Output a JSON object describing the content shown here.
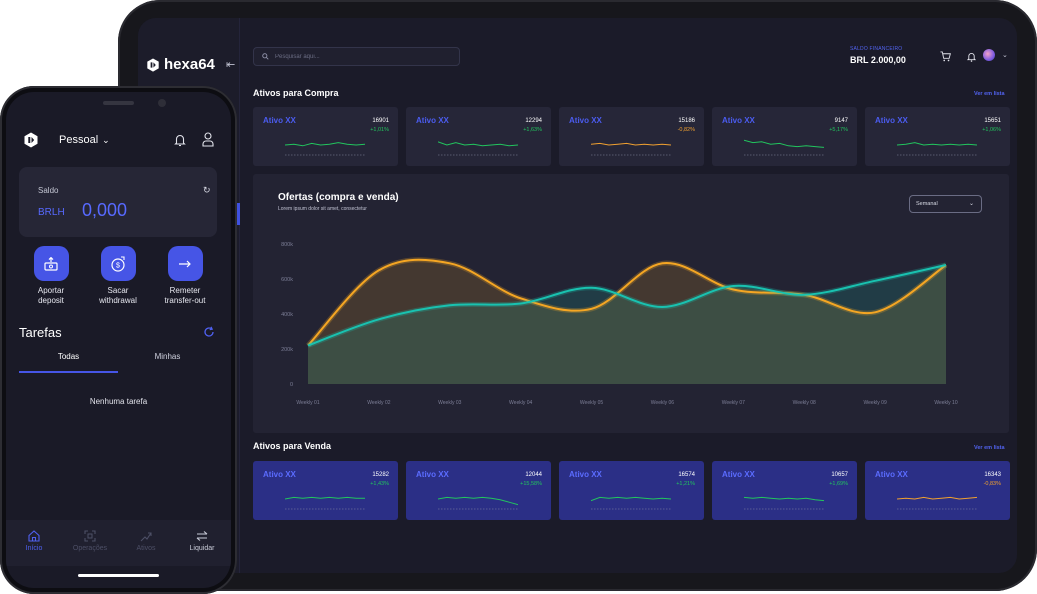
{
  "tablet": {
    "brand": "hexa64",
    "search_placeholder": "Pesquisar aqui...",
    "balance_label": "SALDO FINANCEIRO",
    "balance_value": "BRL 2.000,00",
    "buy": {
      "title": "Ativos para Compra",
      "link": "Ver em lista",
      "cards": [
        {
          "name": "Ativo XX",
          "price": "16901",
          "change": "+1,01%",
          "color": "#22c55e"
        },
        {
          "name": "Ativo XX",
          "price": "12294",
          "change": "+1,63%",
          "color": "#22c55e"
        },
        {
          "name": "Ativo XX",
          "price": "15186",
          "change": "-0,82%",
          "color": "#f0a030"
        },
        {
          "name": "Ativo XX",
          "price": "9147",
          "change": "+5,17%",
          "color": "#22c55e"
        },
        {
          "name": "Ativo XX",
          "price": "15651",
          "change": "+1,06%",
          "color": "#22c55e"
        }
      ]
    },
    "sell": {
      "title": "Ativos para Venda",
      "link": "Ver em lista",
      "cards": [
        {
          "name": "Ativo XX",
          "price": "15282",
          "change": "+1,43%",
          "color": "#22c55e"
        },
        {
          "name": "Ativo XX",
          "price": "12044",
          "change": "+15,58%",
          "color": "#22c55e"
        },
        {
          "name": "Ativo XX",
          "price": "16574",
          "change": "+1,21%",
          "color": "#22c55e"
        },
        {
          "name": "Ativo XX",
          "price": "10657",
          "change": "+1,69%",
          "color": "#22c55e"
        },
        {
          "name": "Ativo XX",
          "price": "16343",
          "change": "-0,83%",
          "color": "#f0a030"
        }
      ]
    },
    "offers": {
      "title": "Ofertas (compra e venda)",
      "subtitle": "Lorem ipsum dolor sit amet, consectetur",
      "period": "Semanal"
    }
  },
  "chart_data": {
    "type": "area",
    "title": "Ofertas (compra e venda)",
    "categories": [
      "Weekly 01",
      "Weekly 02",
      "Weekly 03",
      "Weekly 04",
      "Weekly 05",
      "Weekly 06",
      "Weekly 07",
      "Weekly 08",
      "Weekly 09",
      "Weekly 10"
    ],
    "y_ticks": [
      "0",
      "200k",
      "400k",
      "600k",
      "800k"
    ],
    "ylim": [
      0,
      800000
    ],
    "series": [
      {
        "name": "Compra",
        "color": "#f5a623",
        "values": [
          220000,
          650000,
          690000,
          490000,
          430000,
          690000,
          540000,
          510000,
          410000,
          680000
        ]
      },
      {
        "name": "Venda",
        "color": "#19c2b0",
        "values": [
          220000,
          370000,
          450000,
          460000,
          550000,
          440000,
          560000,
          510000,
          590000,
          680000
        ]
      }
    ],
    "legend": "none"
  },
  "phone": {
    "account": "Pessoal",
    "balance_label": "Saldo",
    "currency": "BRLH",
    "balance": "0,000",
    "actions": [
      {
        "label": "Aportar\ndeposit"
      },
      {
        "label": "Sacar\nwithdrawal"
      },
      {
        "label": "Remeter\ntransfer-out"
      }
    ],
    "tasks_title": "Tarefas",
    "tabs": [
      "Todas",
      "Minhas"
    ],
    "empty": "Nenhuma tarefa",
    "nav": [
      "Início",
      "Operações",
      "Ativos",
      "Liquidar"
    ]
  }
}
